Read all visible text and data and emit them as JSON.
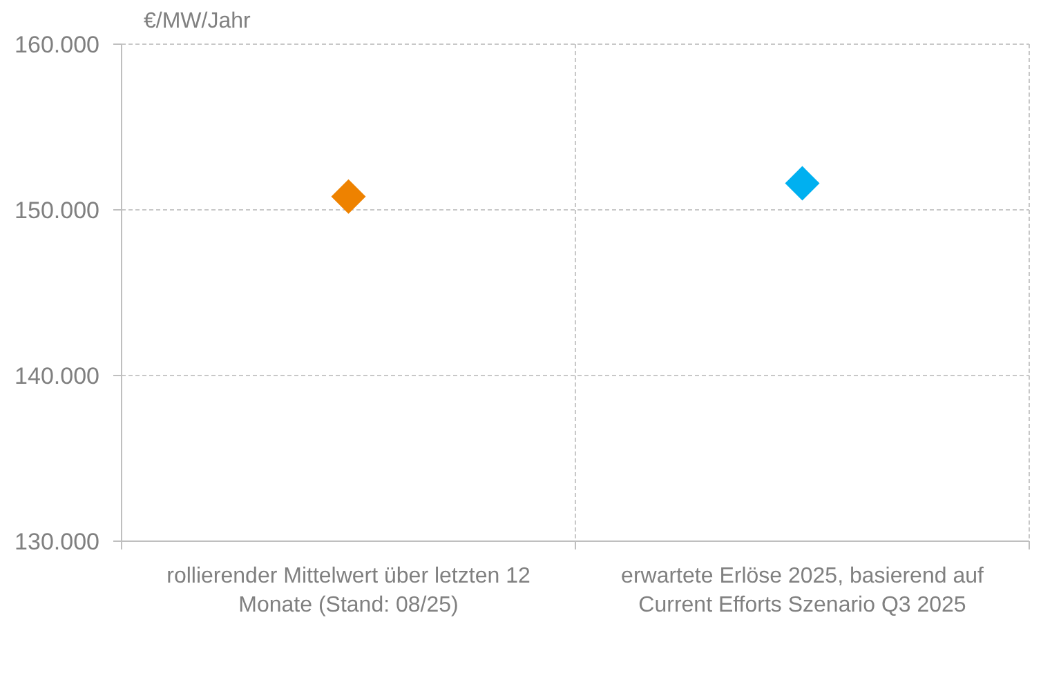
{
  "chart_data": {
    "type": "scatter",
    "ylabel": "€/MW/Jahr",
    "categories": [
      "rollierender Mittelwert über letzten 12 Monate (Stand: 08/25)",
      "erwartete Erlöse 2025, basierend auf Current Efforts Szenario Q3 2025"
    ],
    "values": [
      150800,
      151600
    ],
    "colors": [
      "#ee8200",
      "#00b0f0"
    ],
    "marker": "diamond",
    "ylim": [
      130000,
      160000
    ],
    "yticks": [
      {
        "value": 130000,
        "label": "130.000"
      },
      {
        "value": 140000,
        "label": "140.000"
      },
      {
        "value": 150000,
        "label": "150.000"
      },
      {
        "value": 160000,
        "label": "160.000"
      }
    ],
    "grid": true
  }
}
